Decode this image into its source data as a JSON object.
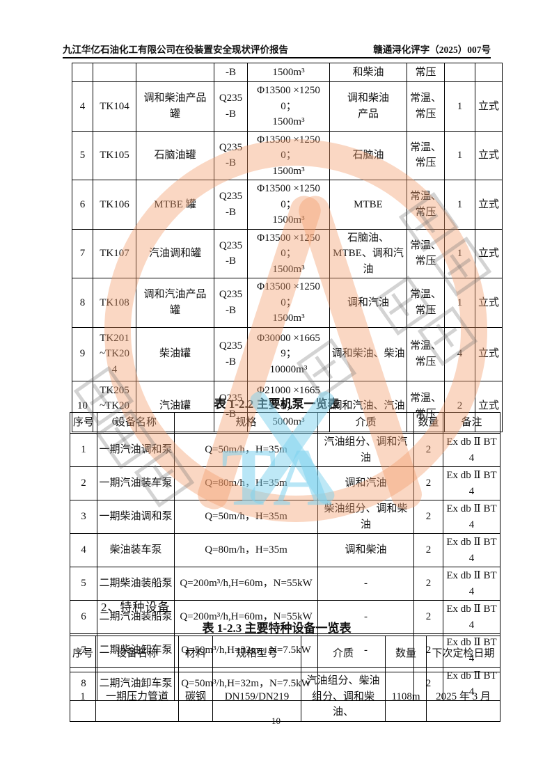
{
  "header": {
    "left": "九江华亿石油化工有限公司在役装置安全现状评价报告",
    "right": "赣通浔化评字（2025）007号"
  },
  "tank_table": {
    "rows": [
      [
        "",
        "",
        "",
        "-B",
        "1500m³",
        "和柴油",
        "常压",
        "",
        ""
      ],
      [
        "4",
        "TK104",
        "调和柴油产品\n罐",
        "Q235\n-B",
        "Φ13500 ×12500；\n1500m³",
        "调和柴油\n产品",
        "常温、\n常压",
        "1",
        "立式"
      ],
      [
        "5",
        "TK105",
        "石脑油罐",
        "Q235\n-B",
        "Φ13500 ×12500；\n1500m³",
        "石脑油",
        "常温、\n常压",
        "1",
        "立式"
      ],
      [
        "6",
        "TK106",
        "MTBE 罐",
        "Q235\n-B",
        "Φ13500 ×12500；\n1500m³",
        "MTBE",
        "常温、\n常压",
        "1",
        "立式"
      ],
      [
        "7",
        "TK107",
        "汽油调和罐",
        "Q235\n-B",
        "Φ13500 ×12500；\n1500m³",
        "石脑油、\nMTBE、调和汽\n油",
        "常温、\n常压",
        "1",
        "立式"
      ],
      [
        "8",
        "TK108",
        "调和汽油产品\n罐",
        "Q235\n-B",
        "Φ13500 ×12500；\n1500m³",
        "调和汽油",
        "常温、\n常压",
        "1",
        "立式"
      ],
      [
        "9",
        "TK201\n~TK20\n4",
        "柴油罐",
        "Q235\n-B",
        "Φ30000 ×16659；\n10000m³",
        "调和柴油、柴油",
        "常温、\n常压",
        "4",
        "立式"
      ],
      [
        "10",
        "TK205\n~TK20\n6",
        "汽油罐",
        "Q235\n-B",
        "Φ21000 ×16659；\n5000m³",
        "调和汽油、汽油",
        "常温、\n常压",
        "2",
        "立式"
      ]
    ]
  },
  "pump_caption": "表 1-2.2  主要机泵一览表",
  "pump_table": {
    "headers": [
      "序号",
      "设备名称",
      "规格",
      "介质",
      "数量",
      "备注"
    ],
    "rows": [
      [
        "1",
        "一期汽油调和泵",
        "Q=50m/h，H=35m",
        "汽油组分、调和汽油",
        "2",
        "Ex db Ⅱ BT4"
      ],
      [
        "2",
        "一期汽油装车泵",
        "Q=80m/h，H=35m",
        "调和汽油",
        "2",
        "Ex db Ⅱ BT4"
      ],
      [
        "3",
        "一期柴油调和泵",
        "Q=50m/h，H=35m",
        "柴油组分、调和柴油",
        "2",
        "Ex db Ⅱ BT4"
      ],
      [
        "4",
        "柴油装车泵",
        "Q=80m/h，H=35m",
        "调和柴油",
        "2",
        "Ex db Ⅱ BT4"
      ],
      [
        "5",
        "二期柴油装船泵",
        "Q=200m³/h,H=60m，N=55kW",
        "-",
        "2",
        "Ex db Ⅱ BT4"
      ],
      [
        "6",
        "二期汽油装船泵",
        "Q=200m³/h,H=60m，N=55kW",
        "-",
        "2",
        "Ex db Ⅱ BT4"
      ],
      [
        "7",
        "二期柴油卸车泵",
        "Q=50m³/h,H=32m，N=7.5kW",
        "-",
        "2",
        "Ex db Ⅱ BT4"
      ],
      [
        "8",
        "二期汽油卸车泵",
        "Q=50m³/h,H=32m，N=7.5kW",
        "-",
        "2",
        "Ex db Ⅱ BT4"
      ]
    ]
  },
  "section_heading": "2、特种设备",
  "special_caption": "表 1-2.3  主要特种设备一览表",
  "special_table": {
    "headers": [
      "序号",
      "设备名称",
      "材料",
      "规格型号",
      "介质",
      "数量",
      "下次定检日期"
    ],
    "rows": [
      [
        "1",
        "一期压力管道",
        "碳钢",
        "DN159/DN219",
        "汽油组分、柴油\n组分、调和柴油、",
        "1108m",
        "2025 年 3 月"
      ]
    ]
  },
  "page_number": "10",
  "watermark": {
    "letters": "TA",
    "ring_color": "#F29A6B",
    "accent_color": "#7DD2EE",
    "gray_color": "#6E6E6E"
  }
}
